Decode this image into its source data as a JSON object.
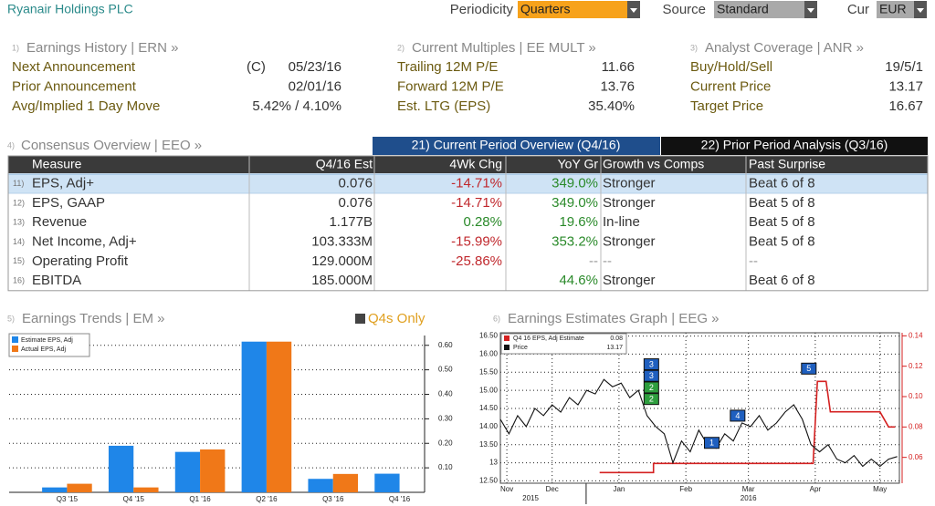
{
  "header": {
    "title": "Ryanair Holdings PLC",
    "periodicity_label": "Periodicity",
    "periodicity": "Quarters",
    "source_label": "Source",
    "source": "Standard",
    "currency_label": "Cur",
    "currency": "EUR"
  },
  "summary": [
    {
      "num": "1)",
      "title": "Earnings History | ERN »",
      "rows": [
        {
          "label": "Next Announcement",
          "prefix": "(C)",
          "value": "05/23/16"
        },
        {
          "label": "Prior Announcement",
          "value": "02/01/16"
        },
        {
          "label": "Avg/Implied 1 Day Move",
          "value": "5.42% / 4.10%"
        }
      ]
    },
    {
      "num": "2)",
      "title": "Current Multiples | EE MULT »",
      "rows": [
        {
          "label": "Trailing 12M P/E",
          "value": "11.66"
        },
        {
          "label": "Forward 12M P/E",
          "value": "13.76"
        },
        {
          "label": "Est. LTG (EPS)",
          "value": "35.40%"
        }
      ]
    },
    {
      "num": "3)",
      "title": "Analyst Coverage | ANR »",
      "rows": [
        {
          "label": "Buy/Hold/Sell",
          "value": "19/5/1"
        },
        {
          "label": "Current Price",
          "value": "13.17"
        },
        {
          "label": "Target Price",
          "value": "16.67"
        }
      ]
    }
  ],
  "consensus": {
    "num": "4)",
    "title": "Consensus Overview | EEO »",
    "tabs": [
      "21) Current Period Overview (Q4/16)",
      "22) Prior Period Analysis (Q3/16)"
    ],
    "columns": [
      "Measure",
      "Q4/16 Est",
      "4Wk Chg",
      "YoY Gr",
      "Growth vs Comps",
      "Past Surprise"
    ],
    "rows": [
      {
        "num": "11)",
        "cells": [
          "EPS, Adj+",
          "0.076",
          "-14.71%",
          "349.0%",
          "Stronger",
          "Beat 6 of 8"
        ]
      },
      {
        "num": "12)",
        "cells": [
          "EPS, GAAP",
          "0.076",
          "-14.71%",
          "349.0%",
          "Stronger",
          "Beat 5 of 8"
        ]
      },
      {
        "num": "13)",
        "cells": [
          "Revenue",
          "1.177B",
          "0.28%",
          "19.6%",
          "In-line",
          "Beat 5 of 8"
        ]
      },
      {
        "num": "14)",
        "cells": [
          "Net Income, Adj+",
          "103.333M",
          "-15.99%",
          "353.2%",
          "Stronger",
          "Beat 5 of 8"
        ]
      },
      {
        "num": "15)",
        "cells": [
          "Operating Profit",
          "129.000M",
          "-25.86%",
          "--",
          "--",
          "--"
        ]
      },
      {
        "num": "16)",
        "cells": [
          "EBITDA",
          "185.000M",
          null,
          "44.6%",
          "Stronger",
          "Beat 6 of 8"
        ]
      }
    ]
  },
  "trends_chart": {
    "type": "bar",
    "num": "5)",
    "title": "Earnings Trends | EM »",
    "toggle": "Q4s Only",
    "categories": [
      "Q3 '15",
      "Q4 '15",
      "Q1 '16",
      "Q2 '16",
      "Q3 '16",
      "Q4 '16"
    ],
    "series": [
      {
        "name": "Estimate EPS, Adj",
        "color": "#1f86e8",
        "values": [
          0.02,
          0.19,
          0.165,
          0.615,
          0.055,
          0.076
        ]
      },
      {
        "name": "Actual EPS, Adj",
        "color": "#f07818",
        "values": [
          0.035,
          0.02,
          0.175,
          0.615,
          0.075,
          null
        ]
      }
    ],
    "ylim": [
      0,
      0.64
    ],
    "yticks": [
      {
        "value": 0.1,
        "label": "0.10"
      },
      {
        "value": 0.2,
        "label": "0.20"
      },
      {
        "value": 0.3,
        "label": "0.30"
      },
      {
        "value": 0.4,
        "label": "0.40"
      },
      {
        "value": 0.5,
        "label": "0.50"
      },
      {
        "value": 0.6,
        "label": "0.60"
      }
    ],
    "grid": true
  },
  "estimates_graph": {
    "type": "line",
    "num": "6)",
    "title": "Earnings Estimates Graph | EEG »",
    "xlim": [
      6,
      191
    ],
    "xticks": [
      {
        "value": 9,
        "label": "Nov"
      },
      {
        "value": 30,
        "label": "Dec"
      },
      {
        "value": 61,
        "label": "Jan"
      },
      {
        "value": 92,
        "label": "Feb"
      },
      {
        "value": 121,
        "label": "Mar"
      },
      {
        "value": 152,
        "label": "Apr"
      },
      {
        "value": 182,
        "label": "May"
      }
    ],
    "years": [
      {
        "value": 20,
        "label": "2015"
      },
      {
        "value": 121,
        "label": "2016"
      }
    ],
    "ylim": [
      12.435,
      16.59
    ],
    "yticks": [
      {
        "value": 12.5,
        "label": "12.50"
      },
      13,
      {
        "value": 13.5,
        "label": "13.50"
      },
      {
        "value": 14,
        "label": "14.00"
      },
      {
        "value": 14.5,
        "label": "14.50"
      },
      {
        "value": 15,
        "label": "15.00"
      },
      {
        "value": 15.5,
        "label": "15.50"
      },
      {
        "value": 16,
        "label": "16.00"
      },
      {
        "value": 16.5,
        "label": "16.50"
      }
    ],
    "y2lim": [
      0.043,
      0.142
    ],
    "y2ticks": [
      {
        "value": 0.06,
        "label": "0.06"
      },
      {
        "value": 0.08,
        "label": "0.08"
      },
      {
        "value": 0.1,
        "label": "0.10"
      },
      {
        "value": 0.12,
        "label": "0.12"
      },
      {
        "value": 0.14,
        "label": "0.14"
      }
    ],
    "grid": true,
    "series": [
      {
        "name": "Q4 16 EPS, Adj Estimate",
        "legend_value": "0.08",
        "color": "#d42020",
        "axis": "y2",
        "x": [
          52,
          77,
          77,
          151,
          153,
          157,
          159,
          182,
          186,
          189
        ],
        "values": [
          0.05,
          0.05,
          0.056,
          0.056,
          0.11,
          0.11,
          0.09,
          0.09,
          0.08,
          0.08
        ]
      },
      {
        "name": "Price",
        "legend_value": "13.17",
        "color": "#111111",
        "x": [
          6,
          10,
          14,
          18,
          22,
          26,
          30,
          34,
          38,
          42,
          46,
          50,
          54,
          58,
          62,
          66,
          70,
          74,
          78,
          82,
          86,
          90,
          94,
          98,
          102,
          106,
          110,
          114,
          118,
          122,
          126,
          130,
          134,
          138,
          142,
          146,
          150,
          154,
          158,
          162,
          166,
          170,
          174,
          178,
          182,
          186,
          190
        ],
        "values": [
          14.2,
          13.8,
          14.3,
          14.0,
          14.5,
          14.3,
          14.6,
          14.4,
          14.8,
          14.6,
          15.0,
          14.9,
          15.3,
          15.1,
          15.2,
          14.8,
          15.0,
          14.3,
          14.0,
          13.8,
          13.0,
          13.6,
          13.3,
          13.9,
          13.5,
          13.4,
          13.8,
          13.6,
          14.1,
          14.0,
          14.3,
          13.9,
          14.1,
          14.4,
          14.6,
          14.2,
          13.5,
          13.3,
          13.5,
          13.1,
          13.0,
          13.2,
          12.9,
          13.1,
          12.9,
          13.1,
          13.17
        ]
      }
    ],
    "events": [
      {
        "label": "3",
        "x": 76,
        "y": 15.72,
        "color": "#1f5fbf"
      },
      {
        "label": "3",
        "x": 76,
        "y": 15.4,
        "color": "#1f5fbf"
      },
      {
        "label": "2",
        "x": 76,
        "y": 15.08,
        "color": "#2e9e3e"
      },
      {
        "label": "2",
        "x": 76,
        "y": 14.76,
        "color": "#2e9e3e"
      },
      {
        "label": "1",
        "x": 104,
        "y": 13.55,
        "color": "#1f5fbf"
      },
      {
        "label": "4",
        "x": 116,
        "y": 14.3,
        "color": "#1f5fbf"
      },
      {
        "label": "5",
        "x": 149,
        "y": 15.6,
        "color": "#1f5fbf"
      }
    ]
  }
}
